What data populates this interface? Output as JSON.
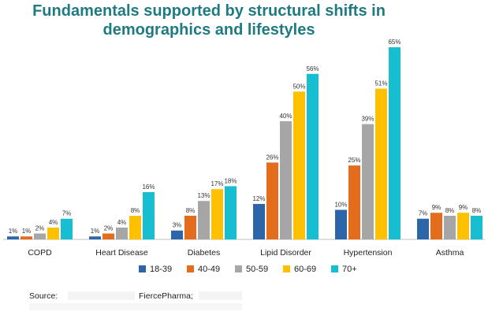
{
  "chart_data": {
    "type": "bar",
    "title_lines": [
      "Fundamentals supported by structural shifts in",
      "demographics and lifestyles"
    ],
    "categories": [
      "COPD",
      "Heart Disease",
      "Diabetes",
      "Lipid Disorder",
      "Hypertension",
      "Asthma"
    ],
    "series": [
      {
        "name": "18-39",
        "color": "#2e64a8",
        "values": [
          1,
          1,
          3,
          12,
          10,
          7
        ]
      },
      {
        "name": "40-49",
        "color": "#e36c1d",
        "values": [
          1,
          2,
          8,
          26,
          25,
          9
        ]
      },
      {
        "name": "50-59",
        "color": "#a6a6a6",
        "values": [
          2,
          4,
          13,
          40,
          39,
          8
        ]
      },
      {
        "name": "60-69",
        "color": "#ffc000",
        "values": [
          4,
          8,
          17,
          50,
          51,
          9
        ]
      },
      {
        "name": "70+",
        "color": "#17becf",
        "values": [
          7,
          16,
          18,
          56,
          65,
          8
        ]
      }
    ],
    "value_suffix": "%",
    "ylim": [
      0,
      65
    ],
    "grid": false,
    "legend_position": "bottom"
  },
  "source": {
    "label": "Source:",
    "publisher": "FiercePharma;"
  }
}
